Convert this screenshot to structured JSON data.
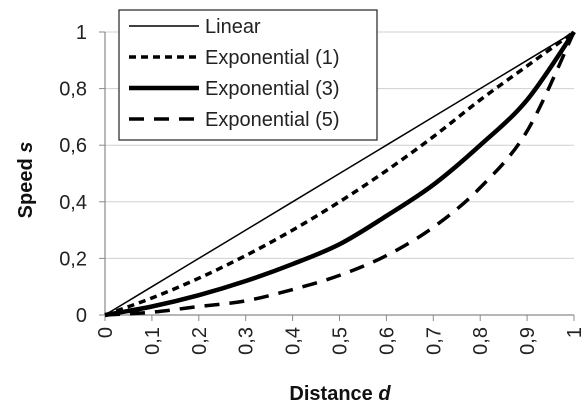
{
  "chart_data": {
    "type": "line",
    "title": "",
    "xlabel": "Distance",
    "xlabel_var": "d",
    "ylabel": "Speed",
    "ylabel_var": "s",
    "xlim": [
      0,
      1
    ],
    "ylim": [
      0,
      1
    ],
    "x_ticks": [
      "0",
      "0,1",
      "0,2",
      "0,3",
      "0,4",
      "0,5",
      "0,6",
      "0,7",
      "0,8",
      "0,9",
      "1"
    ],
    "y_ticks": [
      "0",
      "0,2",
      "0,4",
      "0,6",
      "0,8",
      "1"
    ],
    "grid": "horizontal",
    "legend": "top-left",
    "x": [
      0,
      0.1,
      0.2,
      0.3,
      0.4,
      0.5,
      0.6,
      0.7,
      0.8,
      0.9,
      1
    ],
    "series": [
      {
        "name": "Linear",
        "style": "thin-solid",
        "values": [
          0,
          0.1,
          0.2,
          0.3,
          0.4,
          0.5,
          0.6,
          0.7,
          0.8,
          0.9,
          1
        ]
      },
      {
        "name": "Exponential (1)",
        "style": "dotted",
        "values": [
          0,
          0.06,
          0.13,
          0.21,
          0.3,
          0.4,
          0.51,
          0.63,
          0.76,
          0.88,
          1
        ]
      },
      {
        "name": "Exponential (3)",
        "style": "thick-solid",
        "values": [
          0,
          0.03,
          0.07,
          0.12,
          0.18,
          0.25,
          0.35,
          0.46,
          0.6,
          0.76,
          1
        ]
      },
      {
        "name": "Exponential (5)",
        "style": "dashed",
        "values": [
          0,
          0.01,
          0.03,
          0.05,
          0.09,
          0.14,
          0.21,
          0.31,
          0.45,
          0.65,
          1
        ]
      }
    ],
    "colors": {
      "line": "#000000",
      "grid": "#d0d0d0",
      "axis": "#8a8a8a"
    }
  }
}
